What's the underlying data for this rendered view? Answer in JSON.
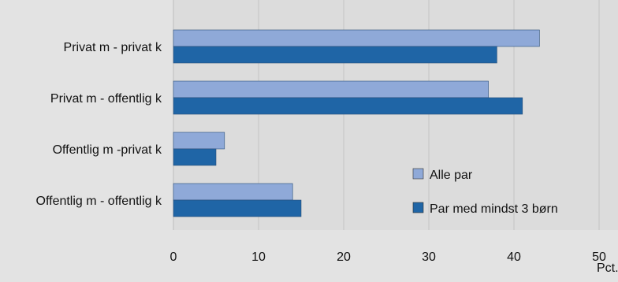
{
  "chart_data": {
    "type": "bar",
    "orientation": "horizontal",
    "categories": [
      "Privat m - privat k",
      "Privat m - offentlig k",
      "Offentlig m -privat k",
      "Offentlig m - offentlig k"
    ],
    "series": [
      {
        "name": "Alle par",
        "values": [
          43,
          37,
          6,
          14
        ],
        "color": "#8fa9d8"
      },
      {
        "name": "Par med mindst 3 børn",
        "values": [
          38,
          41,
          5,
          15
        ],
        "color": "#1f65a6"
      }
    ],
    "xlim": [
      0,
      50
    ],
    "xticks": [
      "0",
      "10",
      "20",
      "30",
      "40",
      "50"
    ],
    "xunit": "Pct.",
    "grid": "vertical",
    "legend_position": "bottom-right"
  }
}
